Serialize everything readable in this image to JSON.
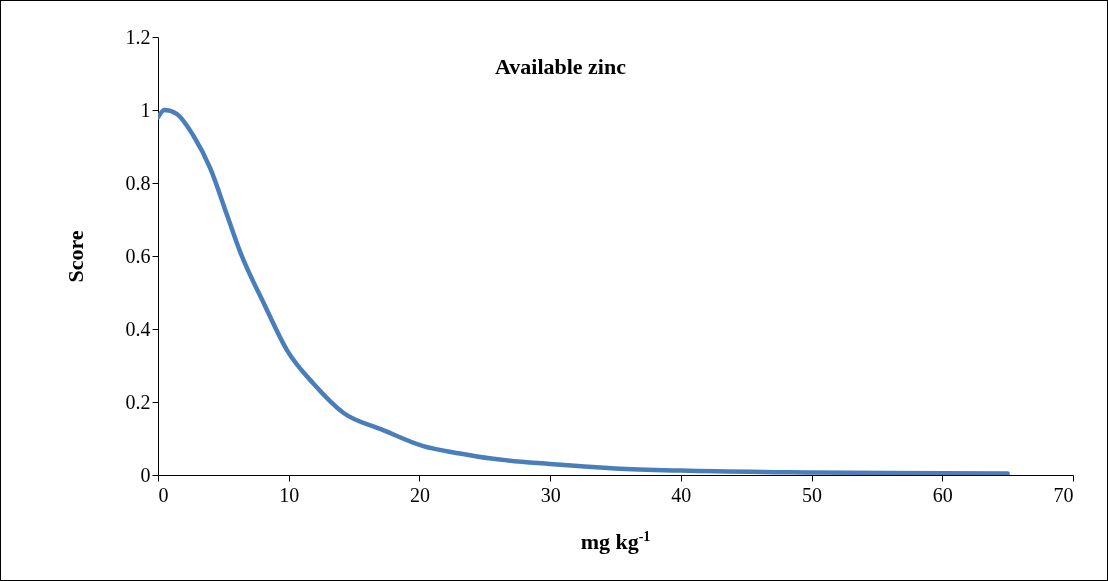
{
  "chart_data": {
    "type": "line",
    "title": "Available zinc",
    "xlabel": "mg kg$^{-1}$",
    "ylabel": "Score",
    "x": [
      0,
      0.5,
      1.4,
      2.7,
      4.0,
      5.3,
      6.3,
      8.1,
      9.9,
      11.9,
      14.2,
      17.1,
      20.3,
      23.1,
      25.5,
      30,
      35,
      40,
      50,
      60,
      65
    ],
    "series": [
      {
        "color": "#4a7ebb",
        "values": [
          0.98,
          1.0,
          0.99,
          0.93,
          0.84,
          0.71,
          0.61,
          0.47,
          0.34,
          0.25,
          0.17,
          0.125,
          0.079,
          0.059,
          0.045,
          0.03,
          0.018,
          0.012,
          0.007,
          0.005,
          0.004
        ]
      }
    ],
    "xlim": [
      0,
      70
    ],
    "xticks": [
      0,
      10,
      20,
      30,
      40,
      50,
      60,
      70
    ],
    "ylim": [
      0,
      1.2
    ],
    "yticks": [
      0,
      0.2,
      0.4,
      0.6,
      0.8,
      1,
      1.2
    ]
  }
}
